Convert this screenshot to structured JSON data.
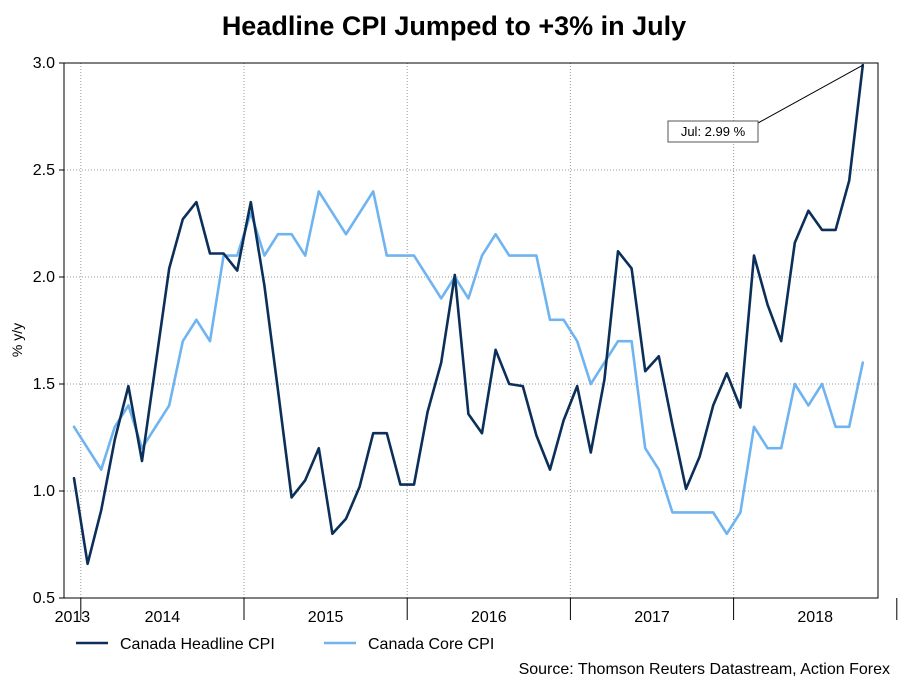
{
  "chart_data": {
    "type": "line",
    "title": "Headline CPI Jumped to +3% in July",
    "ylabel": "% y/y",
    "xlabel": "",
    "ylim": [
      0.5,
      3.0
    ],
    "yticks": [
      "0.5",
      "1.0",
      "1.5",
      "2.0",
      "2.5",
      "3.0"
    ],
    "ytick_values": [
      0.5,
      1.0,
      1.5,
      2.0,
      2.5,
      3.0
    ],
    "x_start": "2012-12",
    "x_months": 69,
    "year_labels": [
      "2013",
      "2014",
      "2015",
      "2016",
      "2017",
      "2018"
    ],
    "grid": true,
    "legend_position": "bottom-left",
    "series": [
      {
        "name": "Canada Headline CPI",
        "color": "#0c2f5a",
        "values": [
          1.06,
          0.66,
          0.91,
          1.24,
          1.49,
          1.14,
          1.59,
          2.04,
          2.27,
          2.35,
          2.11,
          2.11,
          2.03,
          2.35,
          1.96,
          1.47,
          0.97,
          1.05,
          1.2,
          0.8,
          0.87,
          1.02,
          1.27,
          1.27,
          1.03,
          1.03,
          1.37,
          1.6,
          2.01,
          1.36,
          1.27,
          1.66,
          1.5,
          1.49,
          1.26,
          1.1,
          1.33,
          1.49,
          1.18,
          1.52,
          2.12,
          2.04,
          1.56,
          1.63,
          1.31,
          1.01,
          1.16,
          1.4,
          1.55,
          1.39,
          2.1,
          1.87,
          1.7,
          2.16,
          2.31,
          2.22,
          2.22,
          2.45,
          2.99
        ]
      },
      {
        "name": "Canada Core CPI",
        "color": "#6fb4f0",
        "values": [
          1.3,
          1.2,
          1.1,
          1.3,
          1.4,
          1.2,
          1.3,
          1.4,
          1.7,
          1.8,
          1.7,
          2.1,
          2.1,
          2.3,
          2.1,
          2.2,
          2.2,
          2.1,
          2.4,
          2.3,
          2.2,
          2.3,
          2.4,
          2.1,
          2.1,
          2.1,
          2.0,
          1.9,
          2.0,
          1.9,
          2.1,
          2.2,
          2.1,
          2.1,
          2.1,
          1.8,
          1.8,
          1.7,
          1.5,
          1.6,
          1.7,
          1.7,
          1.2,
          1.1,
          0.9,
          0.9,
          0.9,
          0.9,
          0.8,
          0.9,
          1.3,
          1.2,
          1.2,
          1.5,
          1.4,
          1.5,
          1.3,
          1.3,
          1.6
        ]
      }
    ],
    "annotations": [
      {
        "series": "Canada Headline CPI",
        "index": 58,
        "text": "Jul: 2.99 %"
      }
    ],
    "source": "Source: Thomson Reuters Datastream, Action Forex"
  }
}
